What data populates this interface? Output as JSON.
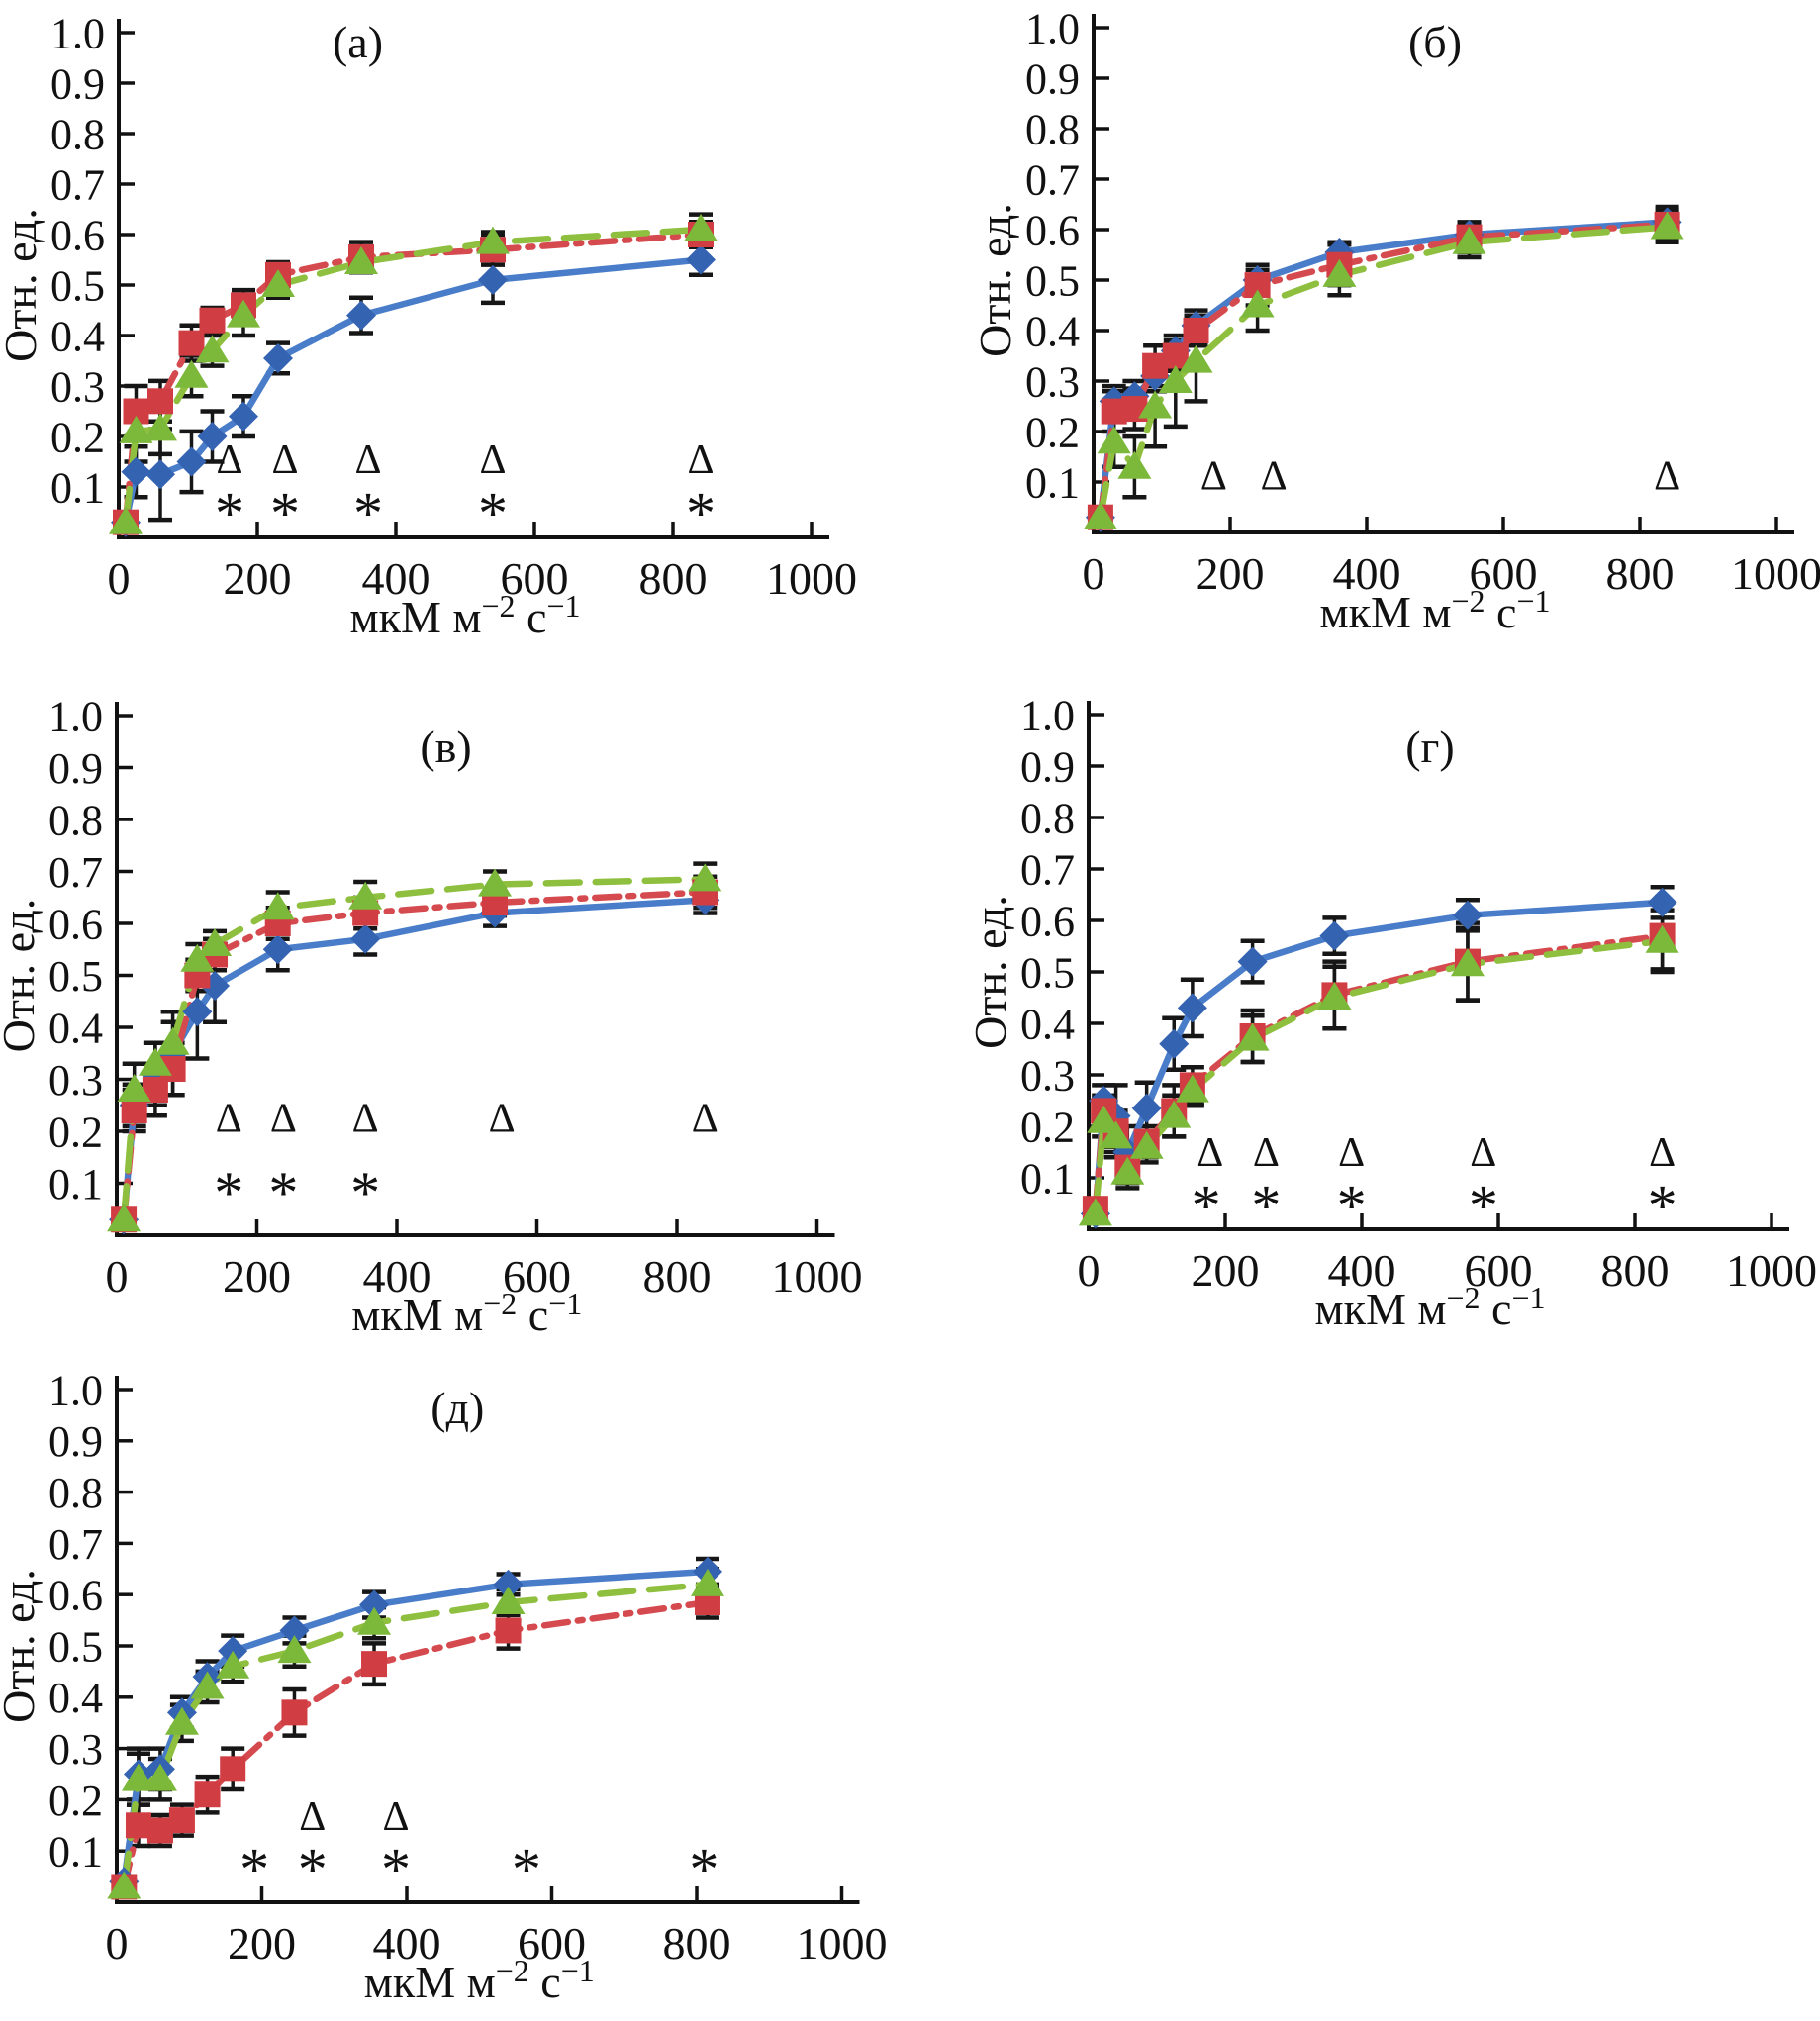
{
  "page": {
    "background": "#ffffff"
  },
  "axis": {
    "y_label": "Отн. ед.",
    "x_label_text": "мкМ м−2 с−1",
    "x_label_parts": [
      {
        "t": "мкМ м",
        "sup": false
      },
      {
        "t": "−2",
        "sup": true
      },
      {
        "t": " с",
        "sup": false
      },
      {
        "t": "−1",
        "sup": true
      }
    ],
    "x_ticks": [
      0,
      200,
      400,
      600,
      800,
      1000
    ],
    "y_ticks": [
      0.1,
      0.2,
      0.3,
      0.4,
      0.5,
      0.6,
      0.7,
      0.8,
      0.9,
      1.0
    ],
    "axis_color": "#111111"
  },
  "series_styles": [
    {
      "name": "red-square",
      "line_color": "#d54a4e",
      "marker_color": "#d03e43",
      "marker": "square",
      "line_style": "dash-dot"
    },
    {
      "name": "green-triangle",
      "line_color": "#8fbf3e",
      "marker_color": "#7cb83a",
      "marker": "triangle",
      "line_style": "dashed"
    },
    {
      "name": "blue-diamond",
      "line_color": "#4a7dc9",
      "marker_color": "#3463b2",
      "marker": "diamond",
      "line_style": "solid"
    }
  ],
  "significance": {
    "delta_glyph": "Δ",
    "star_glyph": "*",
    "color": "#111111"
  },
  "chart_data": [
    {
      "id": "a",
      "type": "line",
      "title": "(а)",
      "ylabel": "Отн. ед.",
      "xlabel": "мкМ м−2 с−1",
      "xlim": [
        0,
        1000
      ],
      "ylim": [
        0,
        1.0
      ],
      "x": [
        10,
        25,
        60,
        105,
        135,
        180,
        230,
        350,
        540,
        840
      ],
      "series": [
        {
          "name": "blue-diamond",
          "y": [
            0.03,
            0.13,
            0.125,
            0.15,
            0.2,
            0.24,
            0.355,
            0.44,
            0.51,
            0.55
          ],
          "err": [
            0.01,
            0.05,
            0.09,
            0.06,
            0.05,
            0.04,
            0.03,
            0.035,
            0.045,
            0.03
          ]
        },
        {
          "name": "red-square",
          "y": [
            0.03,
            0.25,
            0.27,
            0.385,
            0.43,
            0.46,
            0.52,
            0.555,
            0.57,
            0.6
          ],
          "err": [
            0.01,
            0.05,
            0.04,
            0.035,
            0.025,
            0.03,
            0.025,
            0.03,
            0.03,
            0.025
          ]
        },
        {
          "name": "green-triangle",
          "y": [
            0.03,
            0.21,
            0.215,
            0.32,
            0.37,
            0.44,
            0.5,
            0.545,
            0.585,
            0.61
          ],
          "err": [
            0.01,
            0.06,
            0.05,
            0.04,
            0.03,
            0.04,
            0.025,
            0.02,
            0.02,
            0.03
          ]
        }
      ],
      "delta_markers": {
        "y": 0.157,
        "x": [
          160,
          240,
          360,
          540,
          840
        ]
      },
      "star_markers": {
        "y": 0.072,
        "x": [
          160,
          240,
          360,
          540,
          840
        ]
      }
    },
    {
      "id": "b",
      "type": "line",
      "title": "(б)",
      "ylabel": "Отн. ед.",
      "xlabel": "мкМ м−2 с−1",
      "xlim": [
        0,
        1000
      ],
      "ylim": [
        0,
        1.0
      ],
      "x": [
        10,
        30,
        60,
        90,
        120,
        150,
        240,
        360,
        550,
        840
      ],
      "series": [
        {
          "name": "blue-diamond",
          "y": [
            0.03,
            0.26,
            0.27,
            0.31,
            0.36,
            0.41,
            0.5,
            0.555,
            0.59,
            0.615
          ],
          "err": [
            0.01,
            0.03,
            0.03,
            0.03,
            0.03,
            0.03,
            0.02,
            0.02,
            0.02,
            0.03
          ]
        },
        {
          "name": "red-square",
          "y": [
            0.03,
            0.24,
            0.245,
            0.33,
            0.35,
            0.4,
            0.49,
            0.53,
            0.585,
            0.61
          ],
          "err": [
            0.01,
            0.04,
            0.04,
            0.04,
            0.03,
            0.03,
            0.04,
            0.04,
            0.03,
            0.03
          ]
        },
        {
          "name": "green-triangle",
          "y": [
            0.03,
            0.18,
            0.13,
            0.25,
            0.3,
            0.34,
            0.45,
            0.51,
            0.575,
            0.605
          ],
          "err": [
            0.01,
            0.05,
            0.06,
            0.08,
            0.09,
            0.08,
            0.05,
            0.04,
            0.03,
            0.03
          ]
        }
      ],
      "delta_markers": {
        "y": 0.115,
        "x": [
          176,
          264,
          840
        ]
      },
      "star_markers": {
        "y": 0.072,
        "x": []
      }
    },
    {
      "id": "v",
      "type": "line",
      "title": "(в)",
      "ylabel": "Отн. ед.",
      "xlabel": "мкМ м−2 с−1",
      "xlim": [
        0,
        1000
      ],
      "ylim": [
        0,
        1.0
      ],
      "x": [
        10,
        25,
        55,
        80,
        115,
        140,
        230,
        355,
        540,
        840
      ],
      "series": [
        {
          "name": "blue-diamond",
          "y": [
            0.03,
            0.25,
            0.31,
            0.35,
            0.43,
            0.48,
            0.55,
            0.57,
            0.62,
            0.645
          ],
          "err": [
            0.01,
            0.04,
            0.06,
            0.08,
            0.09,
            0.07,
            0.04,
            0.03,
            0.025,
            0.025
          ]
        },
        {
          "name": "red-square",
          "y": [
            0.03,
            0.24,
            0.28,
            0.32,
            0.5,
            0.54,
            0.6,
            0.62,
            0.64,
            0.66
          ],
          "err": [
            0.01,
            0.04,
            0.05,
            0.05,
            0.03,
            0.03,
            0.03,
            0.03,
            0.025,
            0.03
          ]
        },
        {
          "name": "green-triangle",
          "y": [
            0.03,
            0.28,
            0.33,
            0.37,
            0.53,
            0.56,
            0.63,
            0.65,
            0.675,
            0.685
          ],
          "err": [
            0.01,
            0.05,
            0.04,
            0.04,
            0.03,
            0.025,
            0.03,
            0.03,
            0.025,
            0.03
          ]
        }
      ],
      "delta_markers": {
        "y": 0.228,
        "x": [
          160,
          238,
          355,
          550,
          840
        ]
      },
      "star_markers": {
        "y": 0.105,
        "x": [
          160,
          238,
          355
        ]
      }
    },
    {
      "id": "g",
      "type": "line",
      "title": "(г)",
      "ylabel": "Отн. ед.",
      "xlabel": "мкМ м−2 с−1",
      "xlim": [
        0,
        1000
      ],
      "ylim": [
        0,
        1.0
      ],
      "x": [
        10,
        22,
        40,
        57,
        85,
        125,
        152,
        240,
        360,
        555,
        840
      ],
      "series": [
        {
          "name": "blue-diamond",
          "y": [
            0.03,
            0.25,
            0.22,
            0.15,
            0.235,
            0.36,
            0.43,
            0.52,
            0.57,
            0.61,
            0.635
          ],
          "err": [
            0.01,
            0.03,
            0.06,
            0.05,
            0.05,
            0.05,
            0.055,
            0.04,
            0.035,
            0.03,
            0.03
          ]
        },
        {
          "name": "red-square",
          "y": [
            0.04,
            0.23,
            0.19,
            0.12,
            0.17,
            0.23,
            0.28,
            0.375,
            0.455,
            0.52,
            0.57
          ],
          "err": [
            0.01,
            0.03,
            0.04,
            0.03,
            0.03,
            0.05,
            0.035,
            0.05,
            0.065,
            0.075,
            0.065
          ]
        },
        {
          "name": "green-triangle",
          "y": [
            0.03,
            0.21,
            0.18,
            0.11,
            0.16,
            0.22,
            0.27,
            0.37,
            0.45,
            0.515,
            0.56
          ],
          "err": [
            0.01,
            0.03,
            0.04,
            0.03,
            0.03,
            0.04,
            0.03,
            0.045,
            0.06,
            0.07,
            0.06
          ]
        }
      ],
      "delta_markers": {
        "y": 0.152,
        "x": [
          178,
          260,
          385,
          578,
          840
        ]
      },
      "star_markers": {
        "y": 0.068,
        "x": [
          172,
          260,
          385,
          578,
          840
        ]
      }
    },
    {
      "id": "d",
      "type": "line",
      "title": "(д)",
      "ylabel": "Отн. ед.",
      "xlabel": "мкМ м−2 с−1",
      "xlim": [
        0,
        1000
      ],
      "ylim": [
        0,
        1.0
      ],
      "x": [
        10,
        30,
        60,
        90,
        125,
        160,
        245,
        355,
        540,
        815
      ],
      "series": [
        {
          "name": "blue-diamond",
          "y": [
            0.04,
            0.25,
            0.26,
            0.37,
            0.44,
            0.49,
            0.53,
            0.58,
            0.62,
            0.645
          ],
          "err": [
            0.01,
            0.05,
            0.04,
            0.03,
            0.03,
            0.03,
            0.025,
            0.025,
            0.02,
            0.025
          ]
        },
        {
          "name": "red-square",
          "y": [
            0.03,
            0.15,
            0.14,
            0.16,
            0.21,
            0.26,
            0.37,
            0.465,
            0.53,
            0.585
          ],
          "err": [
            0.01,
            0.04,
            0.03,
            0.03,
            0.035,
            0.04,
            0.045,
            0.04,
            0.035,
            0.03
          ]
        },
        {
          "name": "green-triangle",
          "y": [
            0.03,
            0.24,
            0.24,
            0.35,
            0.42,
            0.46,
            0.49,
            0.545,
            0.585,
            0.62
          ],
          "err": [
            0.01,
            0.05,
            0.04,
            0.035,
            0.03,
            0.03,
            0.03,
            0.03,
            0.025,
            0.03
          ]
        }
      ],
      "delta_markers": {
        "y": 0.17,
        "x": [
          270,
          385
        ]
      },
      "star_markers": {
        "y": 0.088,
        "x": [
          190,
          270,
          385,
          565,
          810
        ]
      }
    }
  ]
}
